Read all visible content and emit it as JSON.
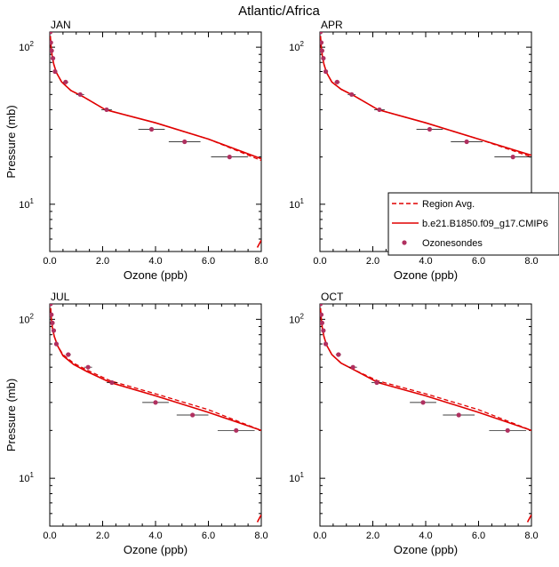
{
  "title": "Atlantic/Africa",
  "legend": {
    "entries": [
      {
        "label": "Region Avg.",
        "style": "dashed",
        "color": "#e00000"
      },
      {
        "label": "b.e21.B1850.f09_g17.CMIP6",
        "style": "solid",
        "color": "#e00000"
      },
      {
        "label": "Ozonesondes",
        "style": "marker",
        "color": "#b03060"
      }
    ]
  },
  "chart_data": [
    {
      "type": "line",
      "panel": "JAN",
      "title": "JAN",
      "xlabel": "Ozone (ppb)",
      "ylabel": "Pressure (mb)",
      "xlim": [
        0,
        8
      ],
      "ylim": [
        125,
        5
      ],
      "yscale": "log",
      "xticks": [
        "0.0",
        "2.0",
        "4.0",
        "6.0",
        "8.0"
      ],
      "yticks": [
        {
          "value": 10,
          "base": "10",
          "exp": "1"
        },
        {
          "value": 100,
          "base": "10",
          "exp": "2"
        }
      ],
      "series": [
        {
          "name": "Region Avg.",
          "style": "dashed",
          "x": [
            0.02,
            0.05,
            0.09,
            0.15,
            0.25,
            0.45,
            0.8,
            1.3,
            2.1,
            4.0,
            6.0,
            8.0
          ],
          "y": [
            118,
            100,
            88,
            78,
            69,
            60,
            53,
            48,
            40,
            33,
            26,
            19
          ]
        },
        {
          "name": "b.e21.B1850.f09_g17.CMIP6",
          "style": "solid",
          "x": [
            0.02,
            0.05,
            0.09,
            0.15,
            0.25,
            0.45,
            0.8,
            1.3,
            2.1,
            4.0,
            6.0,
            8.0
          ],
          "y": [
            118,
            100,
            88,
            78,
            69,
            60,
            53,
            48,
            40,
            33,
            26,
            19.5
          ]
        },
        {
          "name": "Ozonesondes",
          "style": "marker",
          "x": [
            0.02,
            0.04,
            0.07,
            0.12,
            0.2,
            0.6,
            1.15,
            2.15,
            3.85,
            5.1,
            6.8
          ],
          "y": [
            125,
            107,
            95,
            85,
            70,
            60,
            50,
            40,
            30,
            25,
            20
          ],
          "xerr": [
            0.02,
            0.02,
            0.03,
            0.03,
            0.05,
            0.1,
            0.15,
            0.2,
            0.5,
            0.6,
            0.7
          ]
        }
      ]
    },
    {
      "type": "line",
      "panel": "APR",
      "title": "APR",
      "xlabel": "Ozone (ppb)",
      "ylabel": "",
      "xlim": [
        0,
        8
      ],
      "ylim": [
        125,
        5
      ],
      "yscale": "log",
      "xticks": [
        "0.0",
        "2.0",
        "4.0",
        "6.0",
        "8.0"
      ],
      "yticks": [
        {
          "value": 10,
          "base": "10",
          "exp": "1"
        },
        {
          "value": 100,
          "base": "10",
          "exp": "2"
        }
      ],
      "series": [
        {
          "name": "Region Avg.",
          "style": "dashed",
          "x": [
            0.02,
            0.05,
            0.09,
            0.15,
            0.25,
            0.45,
            0.8,
            1.3,
            2.2,
            4.0,
            6.0,
            8.0
          ],
          "y": [
            118,
            100,
            88,
            78,
            69,
            60,
            54,
            49,
            40,
            33,
            26,
            20
          ]
        },
        {
          "name": "b.e21.B1850.f09_g17.CMIP6",
          "style": "solid",
          "x": [
            0.02,
            0.05,
            0.09,
            0.15,
            0.25,
            0.45,
            0.8,
            1.3,
            2.2,
            4.0,
            6.0,
            8.0
          ],
          "y": [
            118,
            100,
            88,
            78,
            69,
            60,
            54,
            49,
            40,
            33,
            26,
            20.5
          ]
        },
        {
          "name": "Ozonesondes",
          "style": "marker",
          "x": [
            0.02,
            0.05,
            0.08,
            0.13,
            0.22,
            0.65,
            1.2,
            2.25,
            4.15,
            5.55,
            7.3
          ],
          "y": [
            125,
            107,
            95,
            85,
            70,
            60,
            50,
            40,
            30,
            25,
            20
          ],
          "xerr": [
            0.02,
            0.02,
            0.03,
            0.03,
            0.05,
            0.1,
            0.15,
            0.2,
            0.5,
            0.6,
            0.7
          ]
        }
      ]
    },
    {
      "type": "line",
      "panel": "JUL",
      "title": "JUL",
      "xlabel": "Ozone (ppb)",
      "ylabel": "Pressure (mb)",
      "xlim": [
        0,
        8
      ],
      "ylim": [
        125,
        5
      ],
      "yscale": "log",
      "xticks": [
        "0.0",
        "2.0",
        "4.0",
        "6.0",
        "8.0"
      ],
      "yticks": [
        {
          "value": 10,
          "base": "10",
          "exp": "1"
        },
        {
          "value": 100,
          "base": "10",
          "exp": "2"
        }
      ],
      "series": [
        {
          "name": "Region Avg.",
          "style": "dashed",
          "x": [
            0.03,
            0.06,
            0.1,
            0.17,
            0.3,
            0.5,
            0.9,
            1.4,
            2.3,
            4.0,
            6.0,
            8.0
          ],
          "y": [
            118,
            100,
            88,
            78,
            68,
            60,
            53,
            48,
            41,
            34,
            27,
            20
          ]
        },
        {
          "name": "b.e21.B1850.f09_g17.CMIP6",
          "style": "solid",
          "x": [
            0.03,
            0.06,
            0.1,
            0.17,
            0.3,
            0.5,
            0.9,
            1.4,
            2.3,
            4.0,
            6.0,
            8.0
          ],
          "y": [
            118,
            100,
            88,
            78,
            68,
            59,
            52,
            47,
            40,
            33,
            26,
            20
          ]
        },
        {
          "name": "Ozonesondes",
          "style": "marker",
          "x": [
            0.03,
            0.06,
            0.1,
            0.15,
            0.25,
            0.7,
            1.45,
            2.35,
            4.0,
            5.4,
            7.05
          ],
          "y": [
            125,
            107,
            95,
            85,
            70,
            60,
            50,
            40,
            30,
            25,
            20
          ],
          "xerr": [
            0.02,
            0.02,
            0.03,
            0.03,
            0.05,
            0.1,
            0.15,
            0.2,
            0.5,
            0.6,
            0.7
          ]
        }
      ]
    },
    {
      "type": "line",
      "panel": "OCT",
      "title": "OCT",
      "xlabel": "Ozone (ppb)",
      "ylabel": "",
      "xlim": [
        0,
        8
      ],
      "ylim": [
        125,
        5
      ],
      "yscale": "log",
      "xticks": [
        "0.0",
        "2.0",
        "4.0",
        "6.0",
        "8.0"
      ],
      "yticks": [
        {
          "value": 10,
          "base": "10",
          "exp": "1"
        },
        {
          "value": 100,
          "base": "10",
          "exp": "2"
        }
      ],
      "series": [
        {
          "name": "Region Avg.",
          "style": "dashed",
          "x": [
            0.02,
            0.05,
            0.09,
            0.15,
            0.25,
            0.45,
            0.8,
            1.3,
            2.2,
            4.0,
            6.0,
            8.0
          ],
          "y": [
            118,
            100,
            88,
            78,
            69,
            60,
            53,
            48,
            41,
            34,
            27,
            20
          ]
        },
        {
          "name": "b.e21.B1850.f09_g17.CMIP6",
          "style": "solid",
          "x": [
            0.02,
            0.05,
            0.09,
            0.15,
            0.25,
            0.45,
            0.8,
            1.3,
            2.2,
            4.0,
            6.0,
            8.0
          ],
          "y": [
            118,
            100,
            88,
            78,
            69,
            60,
            53,
            48,
            40,
            33,
            26,
            20
          ]
        },
        {
          "name": "Ozonesondes",
          "style": "marker",
          "x": [
            0.02,
            0.05,
            0.08,
            0.13,
            0.22,
            0.7,
            1.25,
            2.15,
            3.9,
            5.25,
            7.1
          ],
          "y": [
            125,
            107,
            95,
            85,
            70,
            60,
            50,
            40,
            30,
            25,
            20
          ],
          "xerr": [
            0.02,
            0.02,
            0.03,
            0.03,
            0.05,
            0.1,
            0.15,
            0.2,
            0.5,
            0.6,
            0.7
          ]
        }
      ]
    }
  ]
}
